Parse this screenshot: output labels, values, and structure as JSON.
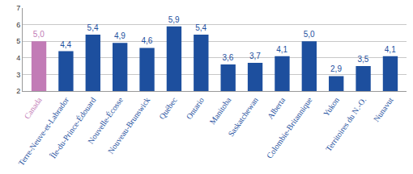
{
  "chart_data": {
    "type": "bar",
    "categories": [
      "Canada",
      "Terre-Neuve-et-Labrador",
      "Île-du-Prince-Édouard",
      "Nouvelle-Écosse",
      "Nouveau-Brunswick",
      "Québec",
      "Ontario",
      "Manitoba",
      "Saskatchewan",
      "Alberta",
      "Colombie-Britannique",
      "Yukon",
      "Territoires du N.-O.",
      "Nunavut"
    ],
    "values": [
      5.0,
      4.4,
      5.4,
      4.9,
      4.6,
      5.9,
      5.4,
      3.6,
      3.7,
      4.1,
      5.0,
      2.9,
      3.5,
      4.1
    ],
    "value_labels": [
      "5,0",
      "4,4",
      "5,4",
      "4,9",
      "4,6",
      "5,9",
      "5,4",
      "3,6",
      "3,7",
      "4,1",
      "5,0",
      "2,9",
      "3,5",
      "4,1"
    ],
    "colors": [
      "#c27bb6",
      "#1d4f9e",
      "#1d4f9e",
      "#1d4f9e",
      "#1d4f9e",
      "#1d4f9e",
      "#1d4f9e",
      "#1d4f9e",
      "#1d4f9e",
      "#1d4f9e",
      "#1d4f9e",
      "#1d4f9e",
      "#1d4f9e",
      "#1d4f9e"
    ],
    "ylim": [
      2,
      7
    ],
    "yticks": [
      2,
      3,
      4,
      5,
      6,
      7
    ],
    "grid": true,
    "data_labels": true
  }
}
